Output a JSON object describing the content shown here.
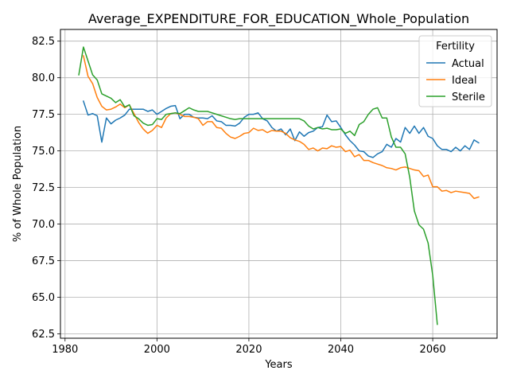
{
  "chart_data": {
    "type": "line",
    "title": "Average_EXPENDITURE_FOR_EDUCATION_Whole_Population",
    "xlabel": "Years",
    "ylabel": "% of Whole Population",
    "xlim": [
      1979,
      2074
    ],
    "ylim": [
      62.2,
      83.3
    ],
    "xticks": [
      1980,
      2000,
      2020,
      2040,
      2060
    ],
    "yticks": [
      62.5,
      65.0,
      67.5,
      70.0,
      72.5,
      75.0,
      77.5,
      80.0,
      82.5
    ],
    "xtick_labels": [
      "1980",
      "2000",
      "2020",
      "2040",
      "2060"
    ],
    "ytick_labels": [
      "62.5",
      "65.0",
      "67.5",
      "70.0",
      "72.5",
      "75.0",
      "77.5",
      "80.0",
      "82.5"
    ],
    "grid": true,
    "legend": {
      "title": "Fertility",
      "position": "top-right"
    },
    "series": [
      {
        "name": "Actual",
        "color": "#1f77b4",
        "x": [
          1984,
          1985,
          1986,
          1987,
          1988,
          1989,
          1990,
          1991,
          1992,
          1993,
          1994,
          1995,
          1996,
          1997,
          1998,
          1999,
          2000,
          2001,
          2002,
          2003,
          2004,
          2005,
          2006,
          2007,
          2008,
          2009,
          2010,
          2011,
          2012,
          2013,
          2014,
          2015,
          2016,
          2017,
          2018,
          2019,
          2020,
          2021,
          2022,
          2023,
          2024,
          2025,
          2026,
          2027,
          2028,
          2029,
          2030,
          2031,
          2032,
          2033,
          2034,
          2035,
          2036,
          2037,
          2038,
          2039,
          2040,
          2041,
          2042,
          2043,
          2044,
          2045,
          2046,
          2047,
          2048,
          2049,
          2050,
          2051,
          2052,
          2053,
          2054,
          2055,
          2056,
          2057,
          2058,
          2059,
          2060,
          2061,
          2062,
          2063,
          2064,
          2065,
          2066,
          2067,
          2068,
          2069,
          2070
        ],
        "y": [
          78.4,
          77.45,
          77.55,
          77.4,
          75.6,
          77.25,
          76.85,
          77.1,
          77.25,
          77.45,
          77.85,
          77.85,
          77.85,
          77.85,
          77.7,
          77.8,
          77.5,
          77.7,
          77.9,
          78.05,
          78.1,
          77.2,
          77.5,
          77.5,
          77.3,
          77.25,
          77.25,
          77.2,
          77.4,
          77.05,
          77.0,
          76.75,
          76.75,
          76.7,
          76.9,
          77.3,
          77.5,
          77.5,
          77.6,
          77.2,
          77.05,
          76.6,
          76.35,
          76.5,
          76.1,
          76.5,
          75.7,
          76.3,
          76.0,
          76.25,
          76.35,
          76.6,
          76.65,
          77.45,
          77.0,
          77.05,
          76.6,
          76.1,
          75.7,
          75.4,
          75.0,
          74.95,
          74.65,
          74.55,
          74.8,
          74.95,
          75.45,
          75.25,
          75.85,
          75.6,
          76.6,
          76.2,
          76.7,
          76.2,
          76.6,
          76.0,
          75.85,
          75.35,
          75.1,
          75.1,
          74.95,
          75.25,
          75.0,
          75.35,
          75.1,
          75.75,
          75.55
        ]
      },
      {
        "name": "Ideal",
        "color": "#ff7f0e",
        "x": [
          1984,
          1985,
          1986,
          1987,
          1988,
          1989,
          1990,
          1991,
          1992,
          1993,
          1994,
          1995,
          1996,
          1997,
          1998,
          1999,
          2000,
          2001,
          2002,
          2003,
          2004,
          2005,
          2006,
          2007,
          2008,
          2009,
          2010,
          2011,
          2012,
          2013,
          2014,
          2015,
          2016,
          2017,
          2018,
          2019,
          2020,
          2021,
          2022,
          2023,
          2024,
          2025,
          2026,
          2027,
          2028,
          2029,
          2030,
          2031,
          2032,
          2033,
          2034,
          2035,
          2036,
          2037,
          2038,
          2039,
          2040,
          2041,
          2042,
          2043,
          2044,
          2045,
          2046,
          2047,
          2048,
          2049,
          2050,
          2051,
          2052,
          2053,
          2054,
          2055,
          2056,
          2057,
          2058,
          2059,
          2060,
          2061,
          2062,
          2063,
          2064,
          2065,
          2066,
          2067,
          2068,
          2069,
          2070
        ],
        "y": [
          81.5,
          80.1,
          79.6,
          78.65,
          78.05,
          77.8,
          77.85,
          78.0,
          78.2,
          77.95,
          78.15,
          77.55,
          76.95,
          76.5,
          76.2,
          76.4,
          76.75,
          76.6,
          77.25,
          77.55,
          77.6,
          77.5,
          77.35,
          77.35,
          77.3,
          77.2,
          76.75,
          77.0,
          77.0,
          76.6,
          76.55,
          76.2,
          75.95,
          75.85,
          76.0,
          76.2,
          76.25,
          76.55,
          76.4,
          76.45,
          76.25,
          76.4,
          76.35,
          76.35,
          76.2,
          75.9,
          75.75,
          75.65,
          75.45,
          75.1,
          75.2,
          75.0,
          75.2,
          75.15,
          75.35,
          75.25,
          75.3,
          74.95,
          75.05,
          74.6,
          74.75,
          74.35,
          74.35,
          74.2,
          74.1,
          74.0,
          73.85,
          73.8,
          73.7,
          73.85,
          73.9,
          73.8,
          73.7,
          73.65,
          73.25,
          73.35,
          72.55,
          72.55,
          72.25,
          72.3,
          72.15,
          72.25,
          72.2,
          72.15,
          72.1,
          71.75,
          71.85
        ]
      },
      {
        "name": "Sterile",
        "color": "#2ca02c",
        "x": [
          1983,
          1984,
          1985,
          1986,
          1987,
          1988,
          1989,
          1990,
          1991,
          1992,
          1993,
          1994,
          1995,
          1996,
          1997,
          1998,
          1999,
          2000,
          2001,
          2002,
          2003,
          2004,
          2005,
          2006,
          2007,
          2008,
          2009,
          2010,
          2011,
          2012,
          2013,
          2014,
          2015,
          2016,
          2017,
          2018,
          2019,
          2020,
          2021,
          2022,
          2023,
          2024,
          2025,
          2026,
          2027,
          2028,
          2029,
          2030,
          2031,
          2032,
          2033,
          2034,
          2035,
          2036,
          2037,
          2038,
          2039,
          2040,
          2041,
          2042,
          2043,
          2044,
          2045,
          2046,
          2047,
          2048,
          2049,
          2050,
          2051,
          2052,
          2053,
          2054,
          2055,
          2056,
          2057,
          2058,
          2059,
          2060,
          2061
        ],
        "y": [
          80.2,
          82.1,
          81.15,
          80.2,
          79.85,
          78.9,
          78.75,
          78.6,
          78.3,
          78.5,
          78.0,
          78.15,
          77.4,
          77.2,
          76.9,
          76.75,
          76.8,
          77.2,
          77.15,
          77.5,
          77.55,
          77.6,
          77.55,
          77.75,
          77.95,
          77.8,
          77.7,
          77.7,
          77.7,
          77.6,
          77.5,
          77.4,
          77.3,
          77.2,
          77.15,
          77.2,
          77.2,
          77.2,
          77.2,
          77.2,
          77.2,
          77.2,
          77.2,
          77.2,
          77.2,
          77.2,
          77.2,
          77.2,
          77.2,
          77.05,
          76.7,
          76.5,
          76.6,
          76.5,
          76.55,
          76.45,
          76.45,
          76.5,
          76.2,
          76.35,
          76.05,
          76.8,
          77.0,
          77.5,
          77.85,
          77.95,
          77.25,
          77.25,
          75.95,
          75.25,
          75.25,
          74.8,
          73.2,
          70.9,
          69.95,
          69.65,
          68.7,
          66.5,
          63.15
        ]
      }
    ]
  }
}
